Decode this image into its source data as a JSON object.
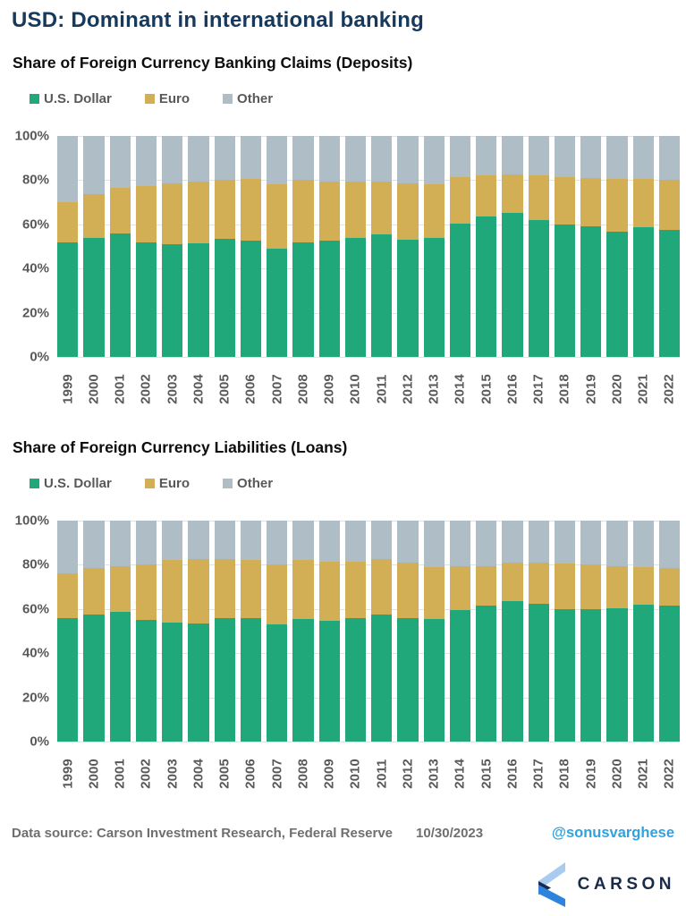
{
  "page": {
    "title": "USD: Dominant in international banking",
    "footer": {
      "source": "Data source: Carson Investment Research, Federal Reserve",
      "date": "10/30/2023",
      "handle": "@sonusvarghese"
    },
    "logo_text": "CARSON"
  },
  "colors": {
    "title_navy": "#17395C",
    "usd_green": "#20A87A",
    "euro_gold": "#D2AE55",
    "other_gray": "#AFBDC6",
    "axis_text": "#595959",
    "handle_blue": "#2FA3DF",
    "logo_navy": "#1A2B49",
    "logo_lightblue": "#A8CBF0",
    "logo_blue": "#2E83DC"
  },
  "chart_data": [
    {
      "type": "bar",
      "stacked": true,
      "title": "Share of Foreign Currency Banking Claims (Deposits)",
      "categories": [
        "1999",
        "2000",
        "2001",
        "2002",
        "2003",
        "2004",
        "2005",
        "2006",
        "2007",
        "2008",
        "2009",
        "2010",
        "2011",
        "2012",
        "2013",
        "2014",
        "2015",
        "2016",
        "2017",
        "2018",
        "2019",
        "2020",
        "2021",
        "2022"
      ],
      "series": [
        {
          "name": "U.S. Dollar",
          "color": "#20A87A",
          "values": [
            52,
            54,
            56,
            52,
            51,
            51.5,
            53.5,
            52.5,
            49,
            52,
            52.5,
            54,
            55.5,
            53,
            54,
            60.5,
            63.5,
            65,
            62,
            60,
            59,
            56.5,
            58.5,
            57.5
          ]
        },
        {
          "name": "Euro",
          "color": "#D2AE55",
          "values": [
            18,
            19.5,
            20.5,
            25.5,
            27.5,
            28,
            26.5,
            28,
            29,
            28,
            27,
            25.5,
            24,
            25.5,
            24,
            21,
            18.5,
            17.5,
            20,
            21.5,
            22,
            24,
            22,
            22.5
          ]
        },
        {
          "name": "Other",
          "color": "#AFBDC6",
          "values": [
            30,
            26.5,
            23.5,
            22.5,
            21.5,
            20.5,
            20,
            19.5,
            22,
            20,
            20.5,
            20.5,
            20.5,
            21.5,
            22,
            18.5,
            18,
            17.5,
            18,
            18.5,
            19,
            19.5,
            19.5,
            20
          ]
        }
      ],
      "ylim": [
        0,
        100
      ],
      "yticks": [
        "100%",
        "80%",
        "60%",
        "40%",
        "20%",
        "0%"
      ],
      "grid": true,
      "legend_position": "top-left"
    },
    {
      "type": "bar",
      "stacked": true,
      "title": "Share of Foreign Currency Liabilities (Loans)",
      "categories": [
        "1999",
        "2000",
        "2001",
        "2002",
        "2003",
        "2004",
        "2005",
        "2006",
        "2007",
        "2008",
        "2009",
        "2010",
        "2011",
        "2012",
        "2013",
        "2014",
        "2015",
        "2016",
        "2017",
        "2018",
        "2019",
        "2020",
        "2021",
        "2022"
      ],
      "series": [
        {
          "name": "U.S. Dollar",
          "color": "#20A87A",
          "values": [
            56,
            57.5,
            58.5,
            55,
            54,
            53.5,
            56,
            56,
            53,
            55.5,
            54.5,
            56,
            57.5,
            56,
            55.5,
            59.5,
            61.5,
            63.5,
            62.5,
            60,
            60,
            60.5,
            62,
            61.5
          ]
        },
        {
          "name": "Euro",
          "color": "#D2AE55",
          "values": [
            20,
            21,
            21,
            25,
            28,
            29,
            26.5,
            26,
            27,
            26.5,
            27,
            25.5,
            25,
            25,
            23.5,
            20,
            18,
            17.5,
            18.5,
            20.5,
            20,
            19,
            17,
            17
          ]
        },
        {
          "name": "Other",
          "color": "#AFBDC6",
          "values": [
            24,
            21.5,
            20.5,
            20,
            18,
            17.5,
            17.5,
            18,
            20,
            18,
            18.5,
            18.5,
            17.5,
            19,
            21,
            20.5,
            20.5,
            19,
            19,
            19.5,
            20,
            20.5,
            21,
            21.5
          ]
        }
      ],
      "ylim": [
        0,
        100
      ],
      "yticks": [
        "100%",
        "80%",
        "60%",
        "40%",
        "20%",
        "0%"
      ],
      "grid": true,
      "legend_position": "top-left"
    }
  ]
}
